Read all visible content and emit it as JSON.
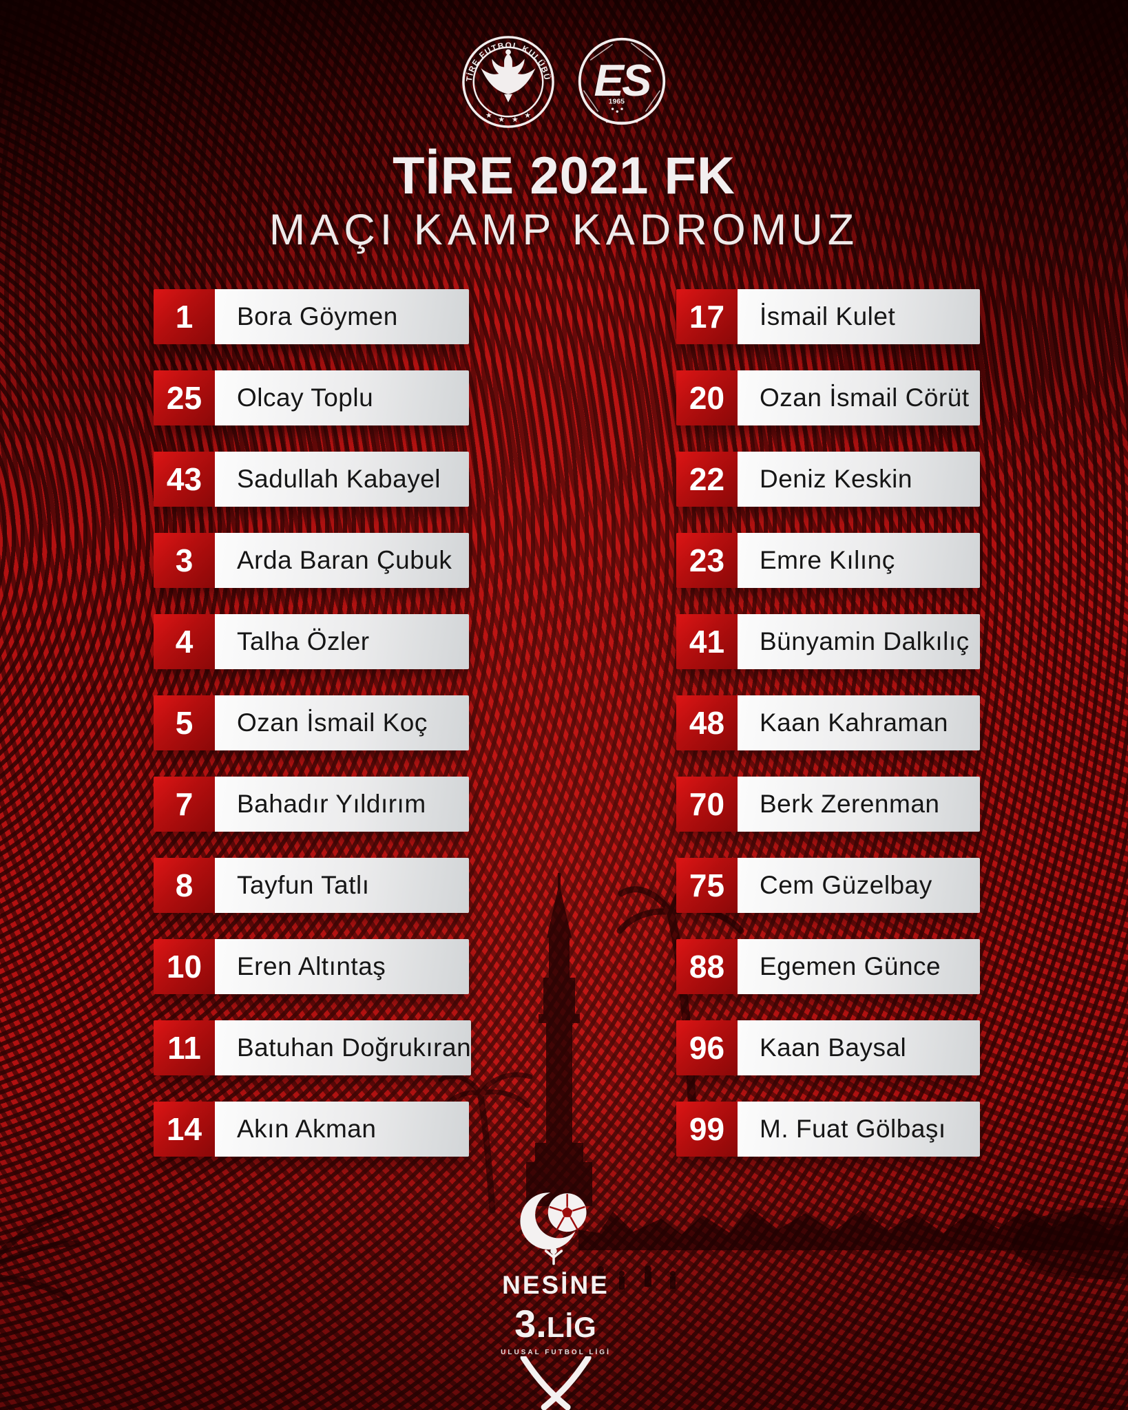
{
  "header": {
    "title": "TİRE 2021 FK",
    "subtitle": "MAÇI KAMP KADROMUZ"
  },
  "badges": {
    "tire": {
      "ring_text": "TİRE FUTBOL KULÜBÜ"
    },
    "es": {
      "letters": "ES",
      "year": "1965"
    }
  },
  "icons": {
    "star": "★"
  },
  "squad": {
    "left": [
      {
        "number": "1",
        "name": "Bora Göymen"
      },
      {
        "number": "25",
        "name": "Olcay Toplu"
      },
      {
        "number": "43",
        "name": "Sadullah Kabayel"
      },
      {
        "number": "3",
        "name": "Arda Baran Çubuk"
      },
      {
        "number": "4",
        "name": "Talha Özler"
      },
      {
        "number": "5",
        "name": "Ozan İsmail Koç"
      },
      {
        "number": "7",
        "name": "Bahadır Yıldırım"
      },
      {
        "number": "8",
        "name": "Tayfun Tatlı"
      },
      {
        "number": "10",
        "name": "Eren Altıntaş"
      },
      {
        "number": "11",
        "name": "Batuhan Doğrukıran"
      },
      {
        "number": "14",
        "name": "Akın Akman"
      }
    ],
    "right": [
      {
        "number": "17",
        "name": "İsmail Kulet"
      },
      {
        "number": "20",
        "name": "Ozan İsmail Cörüt"
      },
      {
        "number": "22",
        "name": "Deniz Keskin"
      },
      {
        "number": "23",
        "name": "Emre Kılınç"
      },
      {
        "number": "41",
        "name": "Bünyamin Dalkılıç"
      },
      {
        "number": "48",
        "name": "Kaan Kahraman"
      },
      {
        "number": "70",
        "name": "Berk Zerenman"
      },
      {
        "number": "75",
        "name": "Cem Güzelbay"
      },
      {
        "number": "88",
        "name": "Egemen Günce"
      },
      {
        "number": "96",
        "name": "Kaan Baysal"
      },
      {
        "number": "99",
        "name": "M. Fuat Gölbaşı"
      }
    ]
  },
  "footer": {
    "sponsor": "NESİNE",
    "league_number": "3.",
    "league_word": "LİG",
    "league_sub": "ULUSAL FUTBOL LİGİ"
  },
  "colors": {
    "canvas_red": "#b21111",
    "stripe_dark": "#3a0404",
    "number_box_light": "#dd1515",
    "number_box_dark": "#8a0808",
    "name_panel_light": "#fbfbfb",
    "name_panel_dark": "#d2d5d7",
    "name_text": "#161616",
    "light_text": "#f2eff0"
  }
}
